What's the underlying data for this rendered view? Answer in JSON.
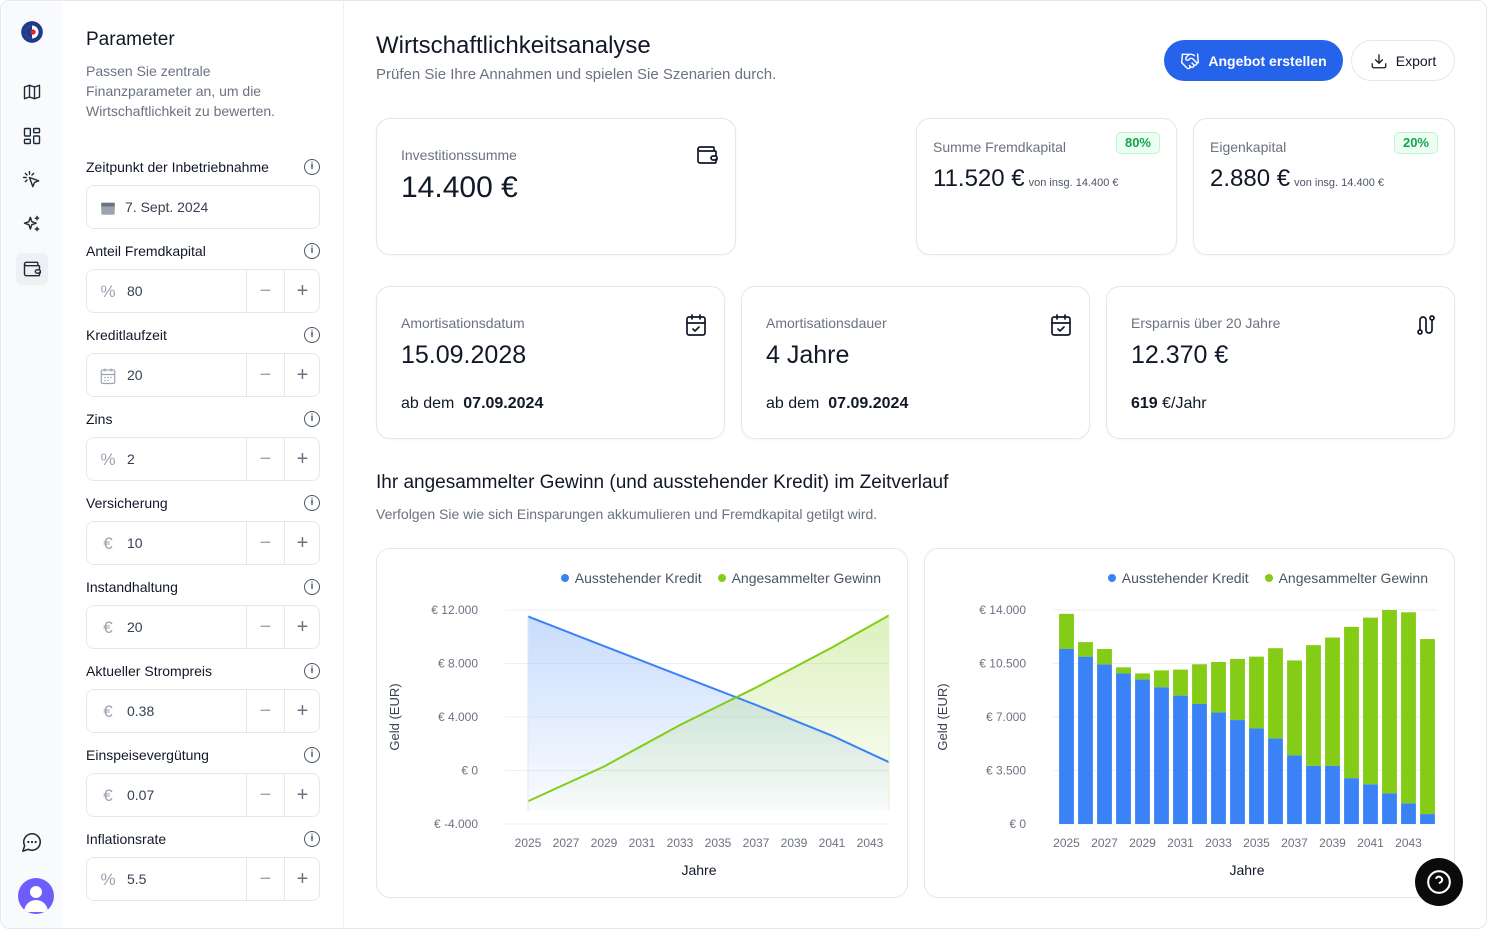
{
  "rail": {
    "items": [
      "map",
      "dashboard",
      "pointer",
      "sparkles",
      "wallet"
    ],
    "active": "wallet"
  },
  "params": {
    "title": "Parameter",
    "description": "Passen Sie zentrale Finanzparameter an, um die Wirtschaftlichkeit zu bewerten.",
    "fields": [
      {
        "label": "Zeitpunkt der Inbetriebnahme",
        "value": "7. Sept. 2024",
        "icon": "calendar-icon"
      },
      {
        "label": "Anteil Fremdkapital",
        "value": "80",
        "icon": "percent-icon"
      },
      {
        "label": "Kreditlaufzeit",
        "value": "20",
        "icon": "calendar-icon"
      },
      {
        "label": "Zins",
        "value": "2",
        "icon": "percent-icon"
      },
      {
        "label": "Versicherung",
        "value": "10",
        "icon": "euro-icon"
      },
      {
        "label": "Instandhaltung",
        "value": "20",
        "icon": "euro-icon"
      },
      {
        "label": "Aktueller Strompreis",
        "value": "0.38",
        "icon": "euro-icon"
      },
      {
        "label": "Einspeisevergütung",
        "value": "0.07",
        "icon": "euro-icon"
      },
      {
        "label": "Inflationsrate",
        "value": "5.5",
        "icon": "percent-icon"
      }
    ],
    "minus": "−",
    "plus": "+",
    "info": "i"
  },
  "header": {
    "title": "Wirtschaftlichkeitsanalyse",
    "subtitle": "Prüfen Sie Ihre Annahmen und spielen Sie Szenarien durch.",
    "primary_btn": "Angebot erstellen",
    "export_btn": "Export"
  },
  "kpi": {
    "invest": {
      "label": "Investitionssumme",
      "value": "14.400 €"
    },
    "fremd": {
      "label": "Summe Fremdkapital",
      "value": "11.520 €",
      "sub": "von insg. 14.400 €",
      "badge": "80%"
    },
    "eigen": {
      "label": "Eigenkapital",
      "value": "2.880 €",
      "sub": "von insg. 14.400 €",
      "badge": "20%"
    },
    "amort_date": {
      "label": "Amortisationsdatum",
      "value": "15.09.2028",
      "foot_pre": "ab dem",
      "foot_val": "07.09.2024"
    },
    "amort_dur": {
      "label": "Amortisationsdauer",
      "value": "4 Jahre",
      "foot_pre": "ab dem",
      "foot_val": "07.09.2024"
    },
    "savings": {
      "label": "Ersparnis über 20 Jahre",
      "value": "12.370 €",
      "foot_val": "619",
      "foot_post": "€/Jahr"
    }
  },
  "section": {
    "title": "Ihr angesammelter Gewinn (und ausstehender Kredit) im Zeitverlauf",
    "subtitle": "Verfolgen Sie wie sich Einsparungen akkumulieren und Fremdkapital getilgt wird."
  },
  "colors": {
    "blue": "#3b82f6",
    "green": "#84cc16",
    "accent": "#2563eb"
  },
  "chart_data": [
    {
      "type": "line",
      "xlabel": "Jahre",
      "ylabel": "Geld (EUR)",
      "ylim": [
        -4000,
        12000
      ],
      "yticks": [
        "€ 12.000",
        "€ 8.000",
        "€ 4.000",
        "€ 0",
        "€ -4.000"
      ],
      "ytick_values": [
        12000,
        8000,
        4000,
        0,
        -4000
      ],
      "xticks": [
        "2025",
        "2027",
        "2029",
        "2031",
        "2033",
        "2035",
        "2037",
        "2039",
        "2041",
        "2043"
      ],
      "xlim": [
        2024,
        2044
      ],
      "legend": "top-right",
      "series": [
        {
          "name": "Ausstehender Kredit",
          "color": "#3b82f6",
          "points": [
            [
              2025,
              11520
            ],
            [
              2029,
              9300
            ],
            [
              2033,
              7100
            ],
            [
              2037,
              4900
            ],
            [
              2041,
              2600
            ],
            [
              2044,
              620
            ]
          ]
        },
        {
          "name": "Angesammelter Gewinn",
          "color": "#84cc16",
          "points": [
            [
              2025,
              -2300
            ],
            [
              2029,
              300
            ],
            [
              2033,
              3400
            ],
            [
              2037,
              6200
            ],
            [
              2041,
              9200
            ],
            [
              2044,
              11600
            ]
          ]
        }
      ]
    },
    {
      "type": "bar",
      "stacked": true,
      "xlabel": "Jahre",
      "ylabel": "Geld (EUR)",
      "ylim": [
        0,
        14000
      ],
      "yticks": [
        "€ 14.000",
        "€ 10.500",
        "€ 7.000",
        "€ 3.500",
        "€ 0"
      ],
      "ytick_values": [
        14000,
        10500,
        7000,
        3500,
        0
      ],
      "xticks": [
        "2025",
        "2027",
        "2029",
        "2031",
        "2033",
        "2035",
        "2037",
        "2039",
        "2041",
        "2043"
      ],
      "categories": [
        "2025",
        "2026",
        "2027",
        "2028",
        "2029",
        "2030",
        "2031",
        "2032",
        "2033",
        "2034",
        "2035",
        "2036",
        "2037",
        "2038",
        "2039",
        "2040",
        "2041",
        "2042",
        "2043",
        "2044"
      ],
      "legend": "top-right",
      "series": [
        {
          "name": "Ausstehender Kredit",
          "color": "#3b82f6",
          "values": [
            11450,
            10950,
            10450,
            9850,
            9450,
            8950,
            8400,
            7850,
            7300,
            6800,
            6250,
            5600,
            4500,
            3800,
            3800,
            3000,
            2600,
            2000,
            1350,
            650
          ]
        },
        {
          "name": "Angesammelter Gewinn",
          "color": "#84cc16",
          "values": [
            2300,
            950,
            1000,
            400,
            400,
            1100,
            1700,
            2600,
            3300,
            4000,
            4700,
            5900,
            6200,
            7900,
            8400,
            9900,
            10900,
            12000,
            12500,
            11450
          ]
        }
      ]
    }
  ]
}
